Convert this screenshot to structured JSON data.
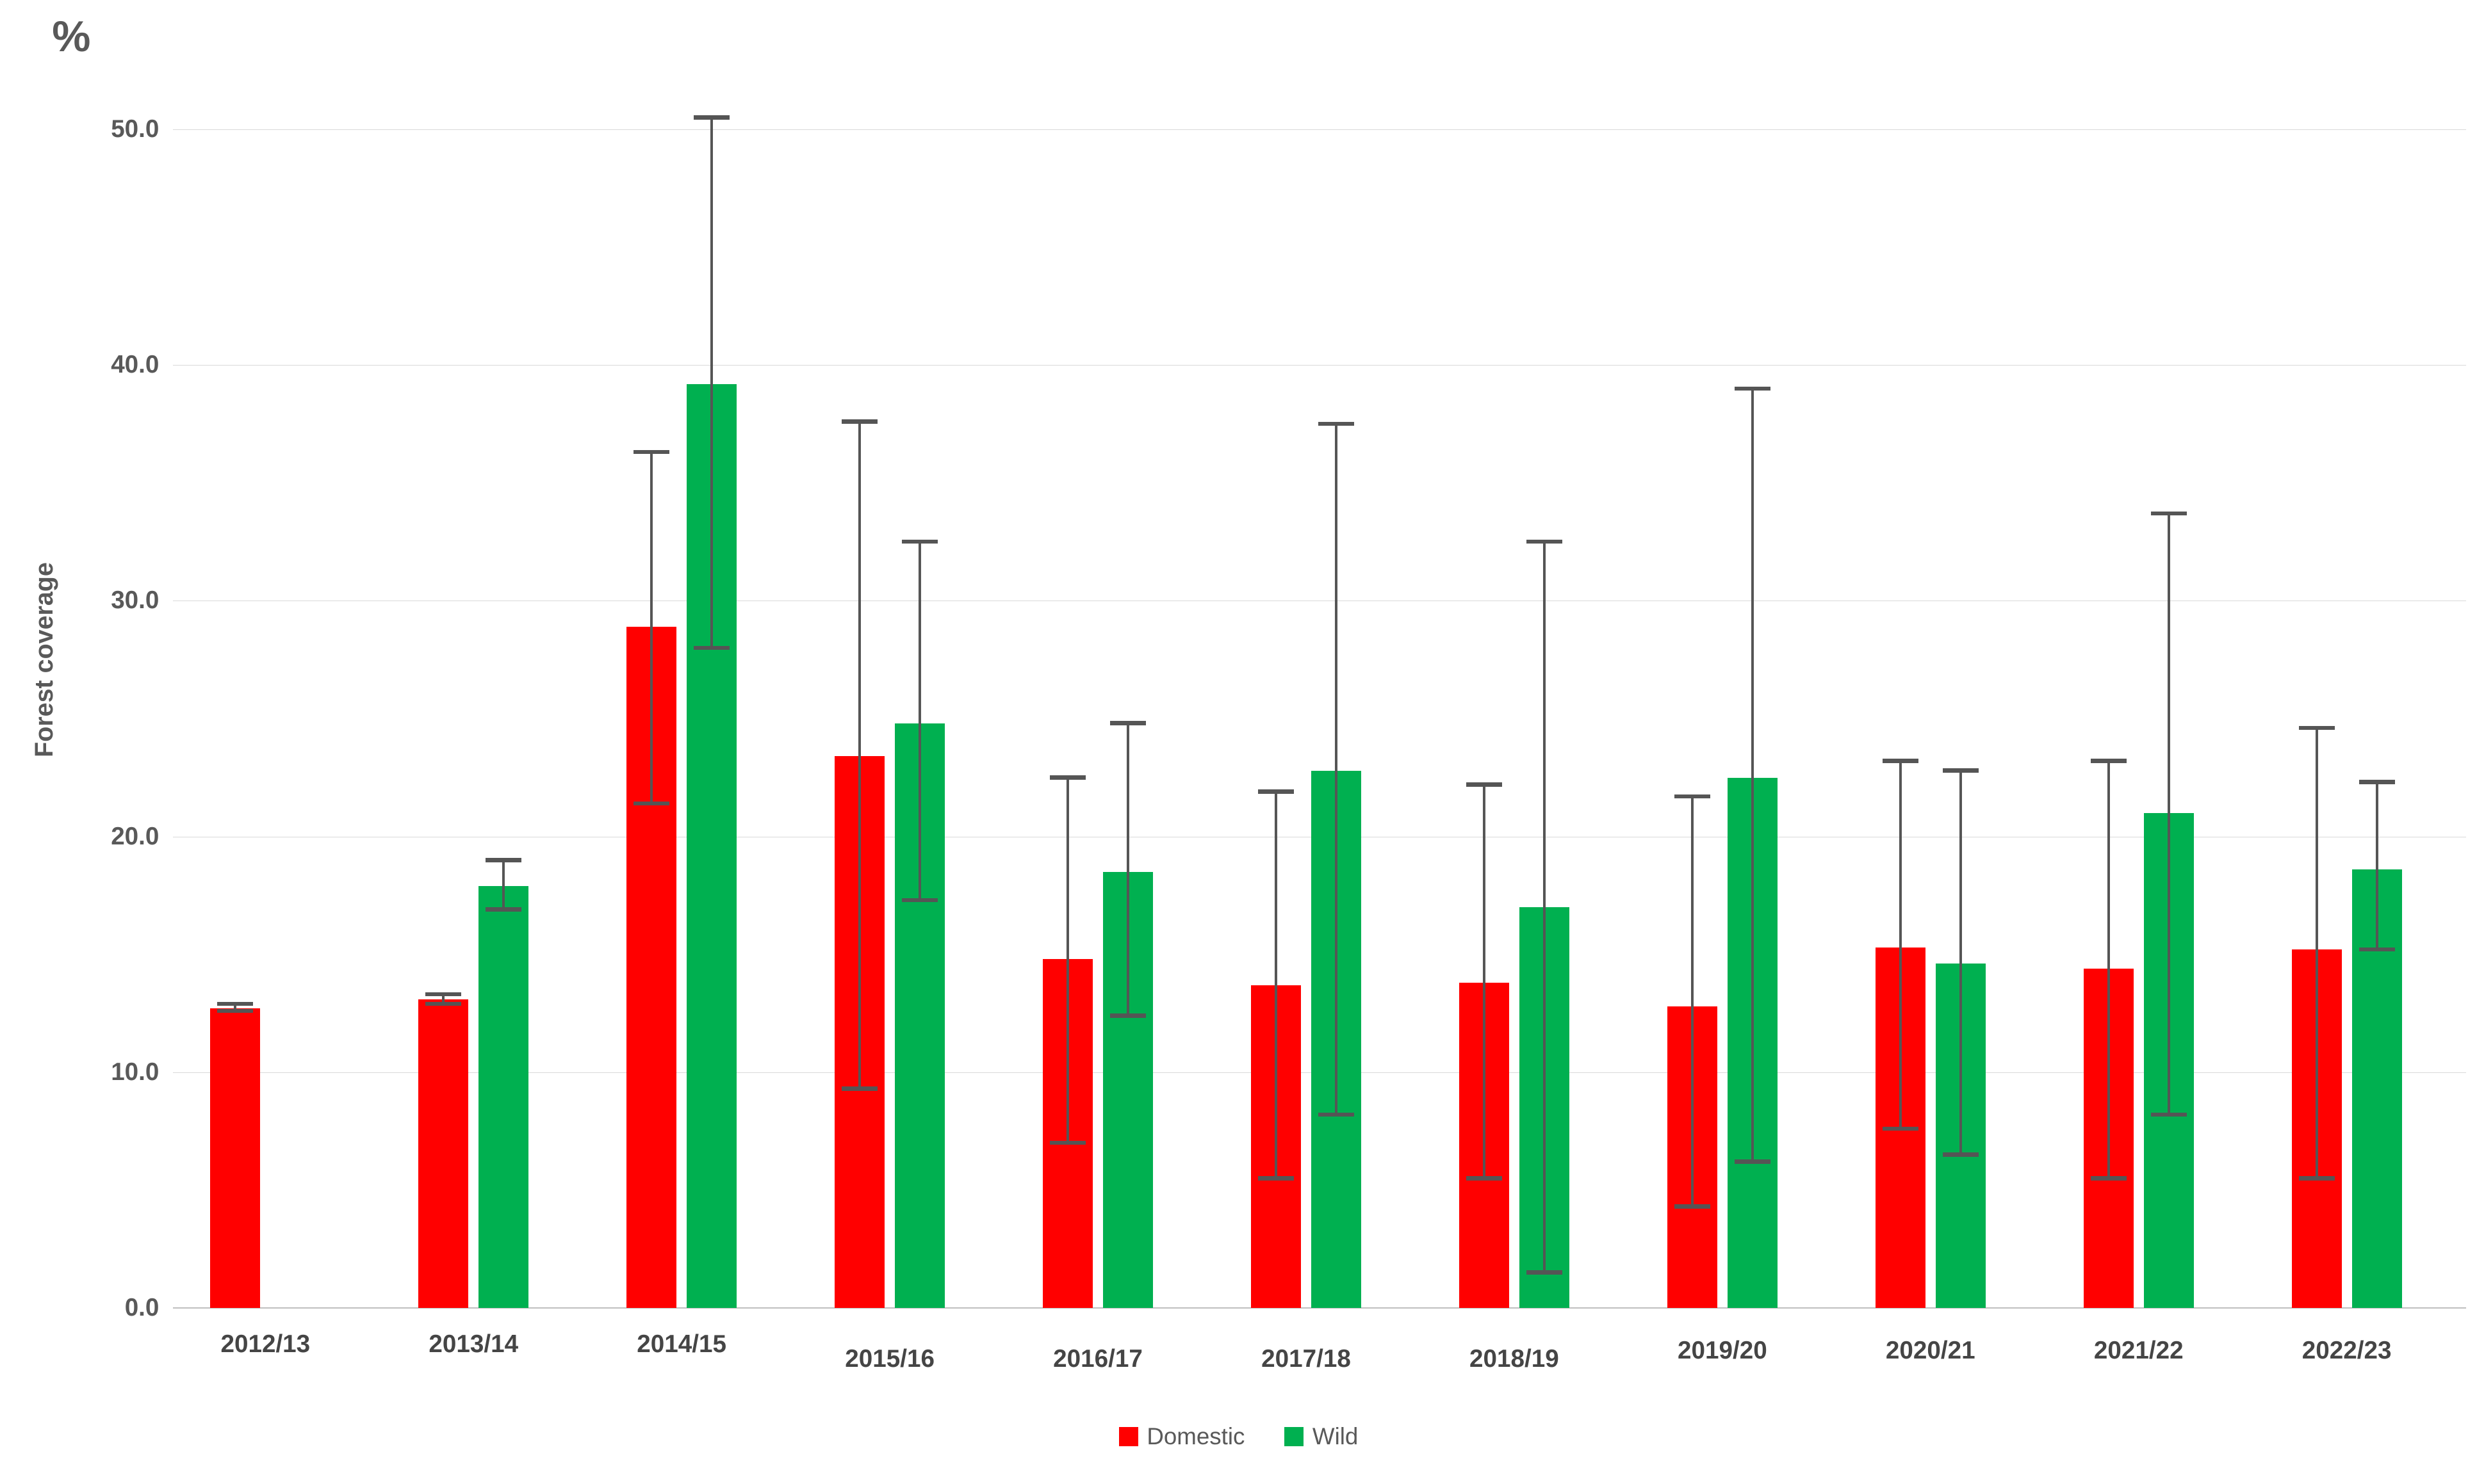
{
  "chart_data": {
    "type": "bar",
    "title": "%",
    "ylabel": "Forest coverage",
    "xlabel": "",
    "categories": [
      "2012/13",
      "2013/14",
      "2014/15",
      "2015/16",
      "2016/17",
      "2017/18",
      "2018/19",
      "2019/20",
      "2020/21",
      "2021/22",
      "2022/23"
    ],
    "y_ticks": [
      "50.0",
      "40.0",
      "30.0",
      "20.0",
      "10.0",
      "0.0"
    ],
    "ylim": [
      0,
      50
    ],
    "grid": true,
    "legend_position": "bottom-center",
    "series": [
      {
        "name": "Domestic",
        "color": "#ff0000",
        "values": [
          12.7,
          13.1,
          28.9,
          23.4,
          14.8,
          13.7,
          13.8,
          12.8,
          15.3,
          14.4,
          15.2
        ],
        "error_low": [
          12.6,
          12.9,
          21.4,
          9.3,
          7.0,
          5.5,
          5.5,
          4.3,
          7.6,
          5.5,
          5.5
        ],
        "error_high": [
          12.9,
          13.3,
          36.3,
          37.6,
          22.5,
          21.9,
          22.2,
          21.7,
          23.2,
          23.2,
          24.6
        ]
      },
      {
        "name": "Wild",
        "color": "#00b050",
        "values": [
          null,
          17.9,
          39.2,
          24.8,
          18.5,
          22.8,
          17.0,
          22.5,
          14.6,
          21.0,
          18.6
        ],
        "error_low": [
          null,
          16.9,
          28.0,
          17.3,
          12.4,
          8.2,
          1.5,
          6.2,
          6.5,
          8.2,
          15.2
        ],
        "error_high": [
          null,
          19.0,
          50.5,
          32.5,
          24.8,
          37.5,
          32.5,
          39.0,
          22.8,
          33.7,
          22.3
        ]
      }
    ],
    "error_bar_color": "#555555",
    "gridline_color": "#d9d9d9",
    "axis_line_color": "#bfbfbf",
    "text_color": "#595959"
  }
}
